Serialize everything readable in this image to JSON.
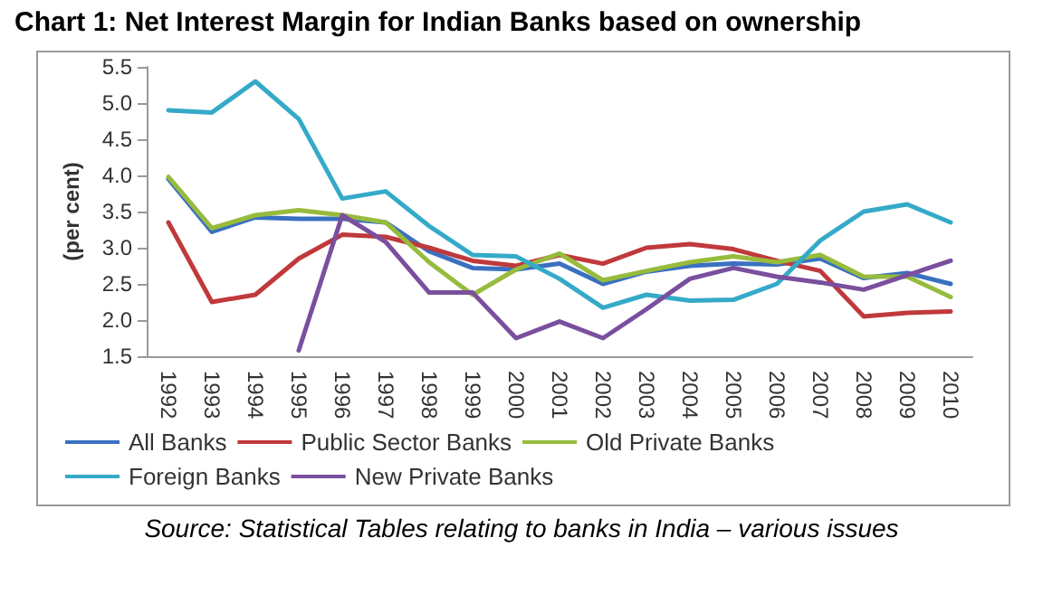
{
  "chart_data": {
    "type": "line",
    "title": "Chart 1: Net Interest Margin for Indian Banks based on ownership",
    "ylabel": "(per cent)",
    "categories": [
      "1992",
      "1993",
      "1994",
      "1995",
      "1996",
      "1997",
      "1998",
      "1999",
      "2000",
      "2001",
      "2002",
      "2003",
      "2004",
      "2005",
      "2006",
      "2007",
      "2008",
      "2009",
      "2010"
    ],
    "series": [
      {
        "name": "All Banks",
        "color": "#3a70c0",
        "values": [
          3.95,
          3.22,
          3.42,
          3.4,
          3.4,
          3.35,
          2.95,
          2.72,
          2.7,
          2.78,
          2.5,
          2.67,
          2.75,
          2.78,
          2.77,
          2.85,
          2.58,
          2.65,
          2.5
        ]
      },
      {
        "name": "Public Sector Banks",
        "color": "#c0393b",
        "values": [
          3.35,
          2.25,
          2.35,
          2.85,
          3.18,
          3.15,
          3.0,
          2.82,
          2.75,
          2.9,
          2.78,
          3.0,
          3.05,
          2.98,
          2.82,
          2.68,
          2.05,
          2.1,
          2.12
        ]
      },
      {
        "name": "Old Private Banks",
        "color": "#97bb3c",
        "values": [
          3.98,
          3.27,
          3.45,
          3.52,
          3.45,
          3.35,
          2.8,
          2.35,
          2.7,
          2.92,
          2.55,
          2.68,
          2.8,
          2.88,
          2.8,
          2.9,
          2.6,
          2.6,
          2.32
        ]
      },
      {
        "name": "Foreign Banks",
        "color": "#35aac8",
        "values": [
          4.9,
          4.87,
          5.3,
          4.78,
          3.68,
          3.78,
          3.3,
          2.9,
          2.88,
          2.57,
          2.17,
          2.35,
          2.27,
          2.28,
          2.5,
          3.1,
          3.5,
          3.6,
          3.35
        ]
      },
      {
        "name": "New Private Banks",
        "color": "#7a4f9e",
        "values": [
          null,
          null,
          null,
          1.58,
          3.45,
          3.08,
          2.38,
          2.38,
          1.75,
          1.98,
          1.75,
          2.15,
          2.57,
          2.72,
          2.6,
          2.52,
          2.42,
          2.62,
          2.82
        ]
      }
    ],
    "ylim": [
      1.5,
      5.5
    ],
    "yticks": [
      1.5,
      {
        "value": 2,
        "label": "2.0"
      },
      2.5,
      {
        "value": 3,
        "label": "3.0"
      },
      3.5,
      {
        "value": 4,
        "label": "4.0"
      },
      4.5,
      {
        "value": 5,
        "label": "5.0"
      },
      5.5
    ],
    "grid": false,
    "legend": "bottom",
    "marker": "none",
    "line_style": "solid",
    "annotations": [
      "Source: Statistical Tables relating to banks in India – various issues"
    ]
  }
}
